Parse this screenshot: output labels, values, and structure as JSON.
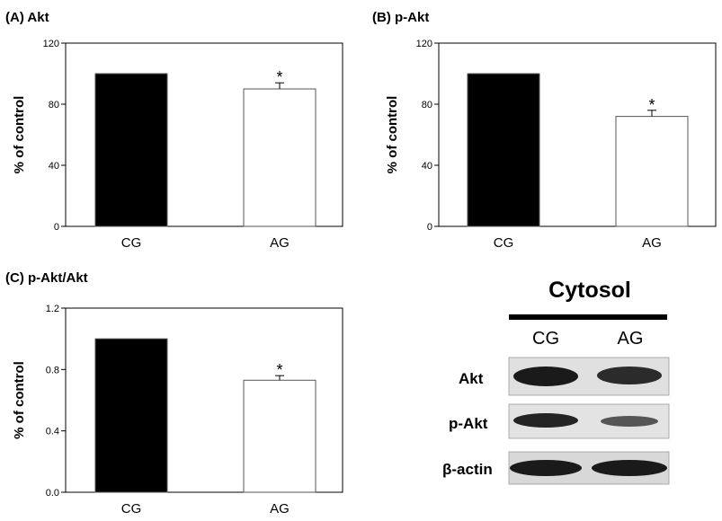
{
  "chart_data": [
    {
      "type": "bar",
      "panel_label": "(A) Akt",
      "ylabel": "% of control",
      "categories": [
        "CG",
        "AG"
      ],
      "values": [
        100,
        90
      ],
      "errors": [
        0,
        4
      ],
      "significance": [
        "",
        "*"
      ],
      "colors": [
        "#000000",
        "#ffffff"
      ],
      "ylim": [
        0,
        120
      ],
      "yticks": [
        "0",
        "40",
        "80",
        "120"
      ]
    },
    {
      "type": "bar",
      "panel_label": "(B) p-Akt",
      "ylabel": "% of control",
      "categories": [
        "CG",
        "AG"
      ],
      "values": [
        100,
        72
      ],
      "errors": [
        0,
        4
      ],
      "significance": [
        "",
        "*"
      ],
      "colors": [
        "#000000",
        "#ffffff"
      ],
      "ylim": [
        0,
        120
      ],
      "yticks": [
        "0",
        "40",
        "80",
        "120"
      ]
    },
    {
      "type": "bar",
      "panel_label": "(C) p-Akt/Akt",
      "ylabel": "% of control",
      "categories": [
        "CG",
        "AG"
      ],
      "values": [
        1.0,
        0.73
      ],
      "errors": [
        0,
        0.03
      ],
      "significance": [
        "",
        "*"
      ],
      "colors": [
        "#000000",
        "#ffffff"
      ],
      "ylim": [
        0,
        1.2
      ],
      "yticks": [
        "0.0",
        "0.4",
        "0.8",
        "1.2"
      ]
    }
  ],
  "blot": {
    "title": "Cytosol",
    "lanes": [
      "CG",
      "AG"
    ],
    "rows": [
      {
        "label": "Akt"
      },
      {
        "label": "p-Akt"
      },
      {
        "label": "β-actin"
      }
    ]
  }
}
